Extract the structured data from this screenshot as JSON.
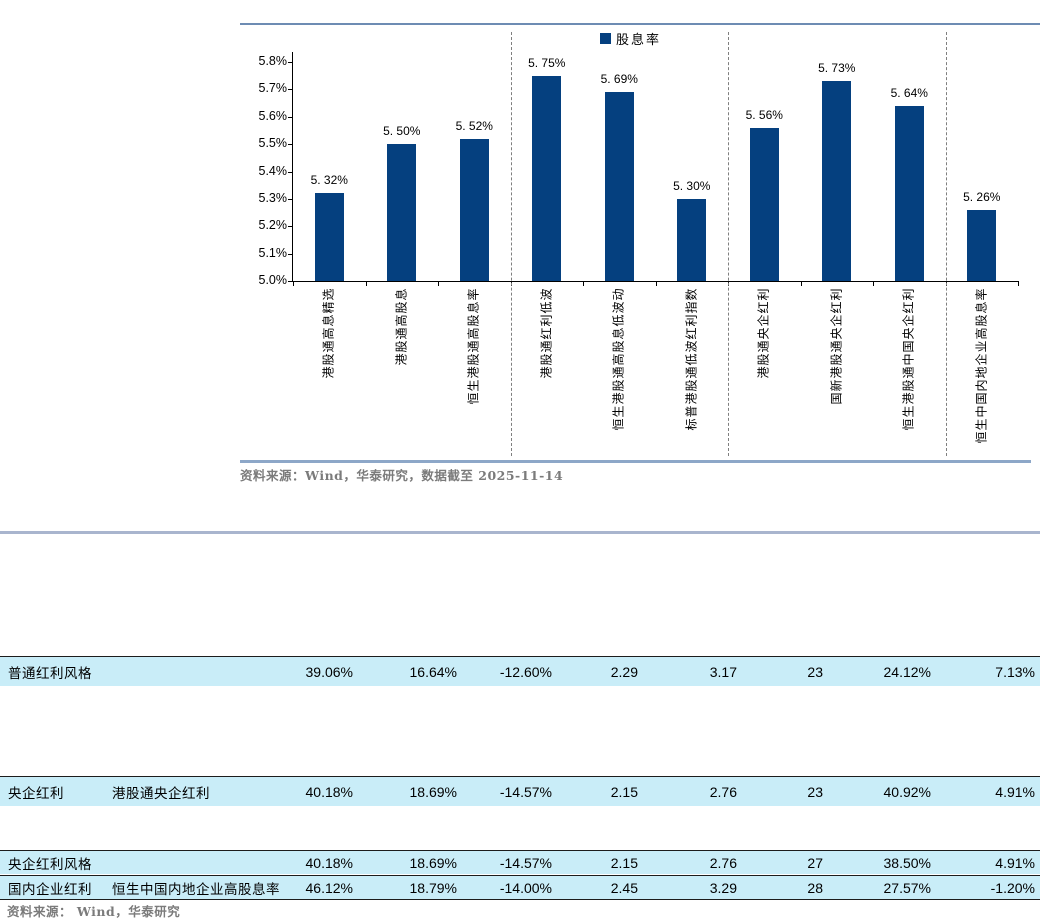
{
  "chart_data": {
    "type": "bar",
    "title": "",
    "legend_label": "股息率",
    "categories": [
      "港股通高息精选",
      "港股通高股息",
      "恒生港股通高股息率",
      "港股通红利低波",
      "恒生港股通高股息低波动",
      "标普港股通低波红利指数",
      "港股通央企红利",
      "国新港股通央企红利",
      "恒生港股通中国央企红利",
      "恒生中国内地企业高股息率"
    ],
    "values": [
      5.32,
      5.5,
      5.52,
      5.75,
      5.69,
      5.3,
      5.56,
      5.73,
      5.64,
      5.26
    ],
    "value_labels": [
      "5. 32%",
      "5. 50%",
      "5. 52%",
      "5. 75%",
      "5. 69%",
      "5. 30%",
      "5. 56%",
      "5. 73%",
      "5. 64%",
      "5. 26%"
    ],
    "ylabel": "",
    "xlabel": "",
    "ylim": [
      5.0,
      5.8
    ],
    "ytick_labels": [
      "5.8%",
      "5.7%",
      "5.6%",
      "5.5%",
      "5.4%",
      "5.3%",
      "5.2%",
      "5.1%",
      "5.0%"
    ],
    "group_separators_after_category": [
      3,
      6,
      9
    ],
    "grid": false,
    "legend_position": "top-center",
    "bar_color": "#05407f"
  },
  "chart_source": "资料来源：Wind，华泰研究，数据截至 2025-11-14",
  "table": {
    "rows": [
      {
        "col1": "普通红利风格",
        "col2": "",
        "values": [
          "39.06%",
          "16.64%",
          "-12.60%",
          "2.29",
          "3.17",
          "23",
          "24.12%",
          "7.13%"
        ]
      },
      {
        "col1": "央企红利",
        "col2": "港股通央企红利",
        "values": [
          "40.18%",
          "18.69%",
          "-14.57%",
          "2.15",
          "2.76",
          "23",
          "40.92%",
          "4.91%"
        ]
      },
      {
        "col1": "央企红利风格",
        "col2": "",
        "values": [
          "40.18%",
          "18.69%",
          "-14.57%",
          "2.15",
          "2.76",
          "27",
          "38.50%",
          "4.91%"
        ]
      },
      {
        "col1": "国内企业红利",
        "col2": "恒生中国内地企业高股息率",
        "values": [
          "46.12%",
          "18.79%",
          "-14.00%",
          "2.45",
          "3.29",
          "28",
          "27.57%",
          "-1.20%"
        ]
      }
    ]
  },
  "footer_source": "资料来源： Wind，华泰研究",
  "colors": {
    "bar": "#05407f",
    "chart_top_line": "#6d8cb3",
    "chart_bottom_line": "#8da7c8",
    "mid_divider": "#a9b5ce",
    "table_row_bg": "#c9edf8",
    "source_text": "#7b7b7b"
  }
}
